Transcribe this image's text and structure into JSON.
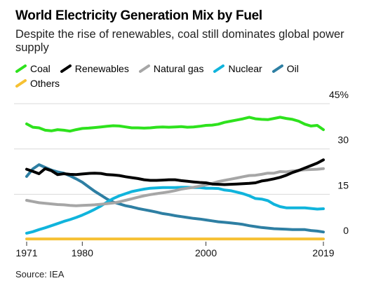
{
  "chart_data": {
    "type": "line",
    "title": "World Electricity Generation Mix by Fuel",
    "subtitle": "Despite the rise of renewables, coal still dominates global power supply",
    "source": "Source: IEA",
    "x": [
      1971,
      1972,
      1973,
      1974,
      1975,
      1976,
      1977,
      1978,
      1979,
      1980,
      1981,
      1982,
      1983,
      1984,
      1985,
      1986,
      1987,
      1988,
      1989,
      1990,
      1991,
      1992,
      1993,
      1994,
      1995,
      1996,
      1997,
      1998,
      1999,
      2000,
      2001,
      2002,
      2003,
      2004,
      2005,
      2006,
      2007,
      2008,
      2009,
      2010,
      2011,
      2012,
      2013,
      2014,
      2015,
      2016,
      2017,
      2018,
      2019
    ],
    "xticks": [
      1971,
      1980,
      2000,
      2019
    ],
    "yticks": [
      0,
      15,
      30,
      45
    ],
    "ytick_labels": [
      "0",
      "15",
      "30",
      "45%"
    ],
    "ylim": [
      0,
      45
    ],
    "xlim": [
      1971,
      2019
    ],
    "series": [
      {
        "name": "Coal",
        "color": "#2ee21d",
        "values": [
          38.3,
          37.2,
          37.0,
          36.2,
          36.0,
          36.4,
          36.2,
          35.9,
          36.4,
          36.8,
          36.9,
          37.1,
          37.3,
          37.5,
          37.7,
          37.6,
          37.3,
          37.0,
          37.0,
          36.9,
          37.0,
          37.2,
          37.3,
          37.2,
          37.3,
          37.4,
          37.2,
          37.3,
          37.5,
          37.8,
          37.9,
          38.2,
          38.8,
          39.2,
          39.6,
          40.0,
          40.5,
          40.0,
          39.8,
          39.7,
          40.1,
          40.5,
          40.1,
          39.8,
          39.2,
          38.2,
          37.6,
          37.8,
          36.4
        ]
      },
      {
        "name": "Renewables",
        "color": "#000000",
        "values": [
          23.3,
          22.6,
          21.8,
          23.5,
          22.8,
          21.5,
          21.8,
          21.6,
          21.5,
          21.7,
          21.9,
          22.0,
          21.9,
          21.5,
          21.4,
          21.2,
          20.8,
          20.5,
          20.2,
          19.8,
          19.6,
          19.6,
          19.7,
          19.8,
          19.8,
          19.5,
          19.3,
          19.1,
          18.9,
          18.8,
          18.4,
          18.3,
          18.2,
          18.3,
          18.4,
          18.5,
          18.6,
          18.8,
          19.4,
          19.7,
          20.1,
          20.6,
          21.3,
          22.2,
          22.9,
          23.7,
          24.5,
          25.3,
          26.4
        ]
      },
      {
        "name": "Natural gas",
        "color": "#a6a6a6",
        "values": [
          13.0,
          12.6,
          12.2,
          12.0,
          11.8,
          11.6,
          11.5,
          11.3,
          11.2,
          11.3,
          11.4,
          11.5,
          11.7,
          11.9,
          12.1,
          12.5,
          13.0,
          13.5,
          14.0,
          14.5,
          14.9,
          15.2,
          15.5,
          15.8,
          16.2,
          16.7,
          17.0,
          17.3,
          17.7,
          18.1,
          18.6,
          19.2,
          19.6,
          20.0,
          20.4,
          20.8,
          21.2,
          21.3,
          21.6,
          22.0,
          22.0,
          22.5,
          22.4,
          22.7,
          22.9,
          23.1,
          23.2,
          23.3,
          23.5
        ]
      },
      {
        "name": "Nuclear",
        "color": "#10b4dc",
        "values": [
          2.1,
          2.6,
          3.3,
          3.9,
          4.6,
          5.3,
          6.0,
          6.6,
          7.3,
          8.1,
          9.0,
          10.0,
          11.1,
          12.4,
          13.6,
          14.5,
          15.2,
          15.9,
          16.3,
          16.7,
          17.0,
          17.1,
          17.2,
          17.2,
          17.2,
          17.3,
          17.3,
          17.2,
          17.2,
          17.0,
          17.0,
          16.9,
          16.4,
          16.2,
          15.7,
          15.2,
          14.5,
          13.6,
          13.4,
          12.9,
          11.7,
          10.9,
          10.5,
          10.5,
          10.5,
          10.5,
          10.3,
          10.1,
          10.2
        ]
      },
      {
        "name": "Oil",
        "color": "#2e7fa3",
        "values": [
          20.9,
          23.4,
          24.8,
          23.9,
          23.0,
          22.4,
          22.0,
          21.1,
          20.1,
          19.0,
          17.5,
          16.0,
          14.7,
          13.4,
          12.4,
          11.8,
          11.2,
          10.8,
          10.3,
          9.9,
          9.5,
          9.1,
          8.6,
          8.3,
          7.9,
          7.6,
          7.3,
          7.0,
          6.8,
          6.5,
          6.2,
          5.9,
          5.7,
          5.5,
          5.3,
          5.0,
          4.6,
          4.3,
          4.0,
          3.8,
          3.6,
          3.5,
          3.4,
          3.3,
          3.3,
          3.3,
          3.0,
          2.8,
          2.5
        ]
      },
      {
        "name": "Others",
        "color": "#f6c133",
        "values": [
          0.2,
          0.2,
          0.2,
          0.2,
          0.2,
          0.2,
          0.2,
          0.2,
          0.2,
          0.2,
          0.2,
          0.2,
          0.2,
          0.2,
          0.2,
          0.2,
          0.2,
          0.2,
          0.2,
          0.2,
          0.2,
          0.2,
          0.2,
          0.2,
          0.2,
          0.2,
          0.2,
          0.2,
          0.2,
          0.2,
          0.2,
          0.2,
          0.2,
          0.2,
          0.2,
          0.2,
          0.2,
          0.2,
          0.2,
          0.2,
          0.2,
          0.2,
          0.2,
          0.2,
          0.2,
          0.2,
          0.2,
          0.2,
          0.2
        ]
      }
    ],
    "grid": true,
    "legend_placement": "top-left",
    "yaxis_side": "right"
  }
}
